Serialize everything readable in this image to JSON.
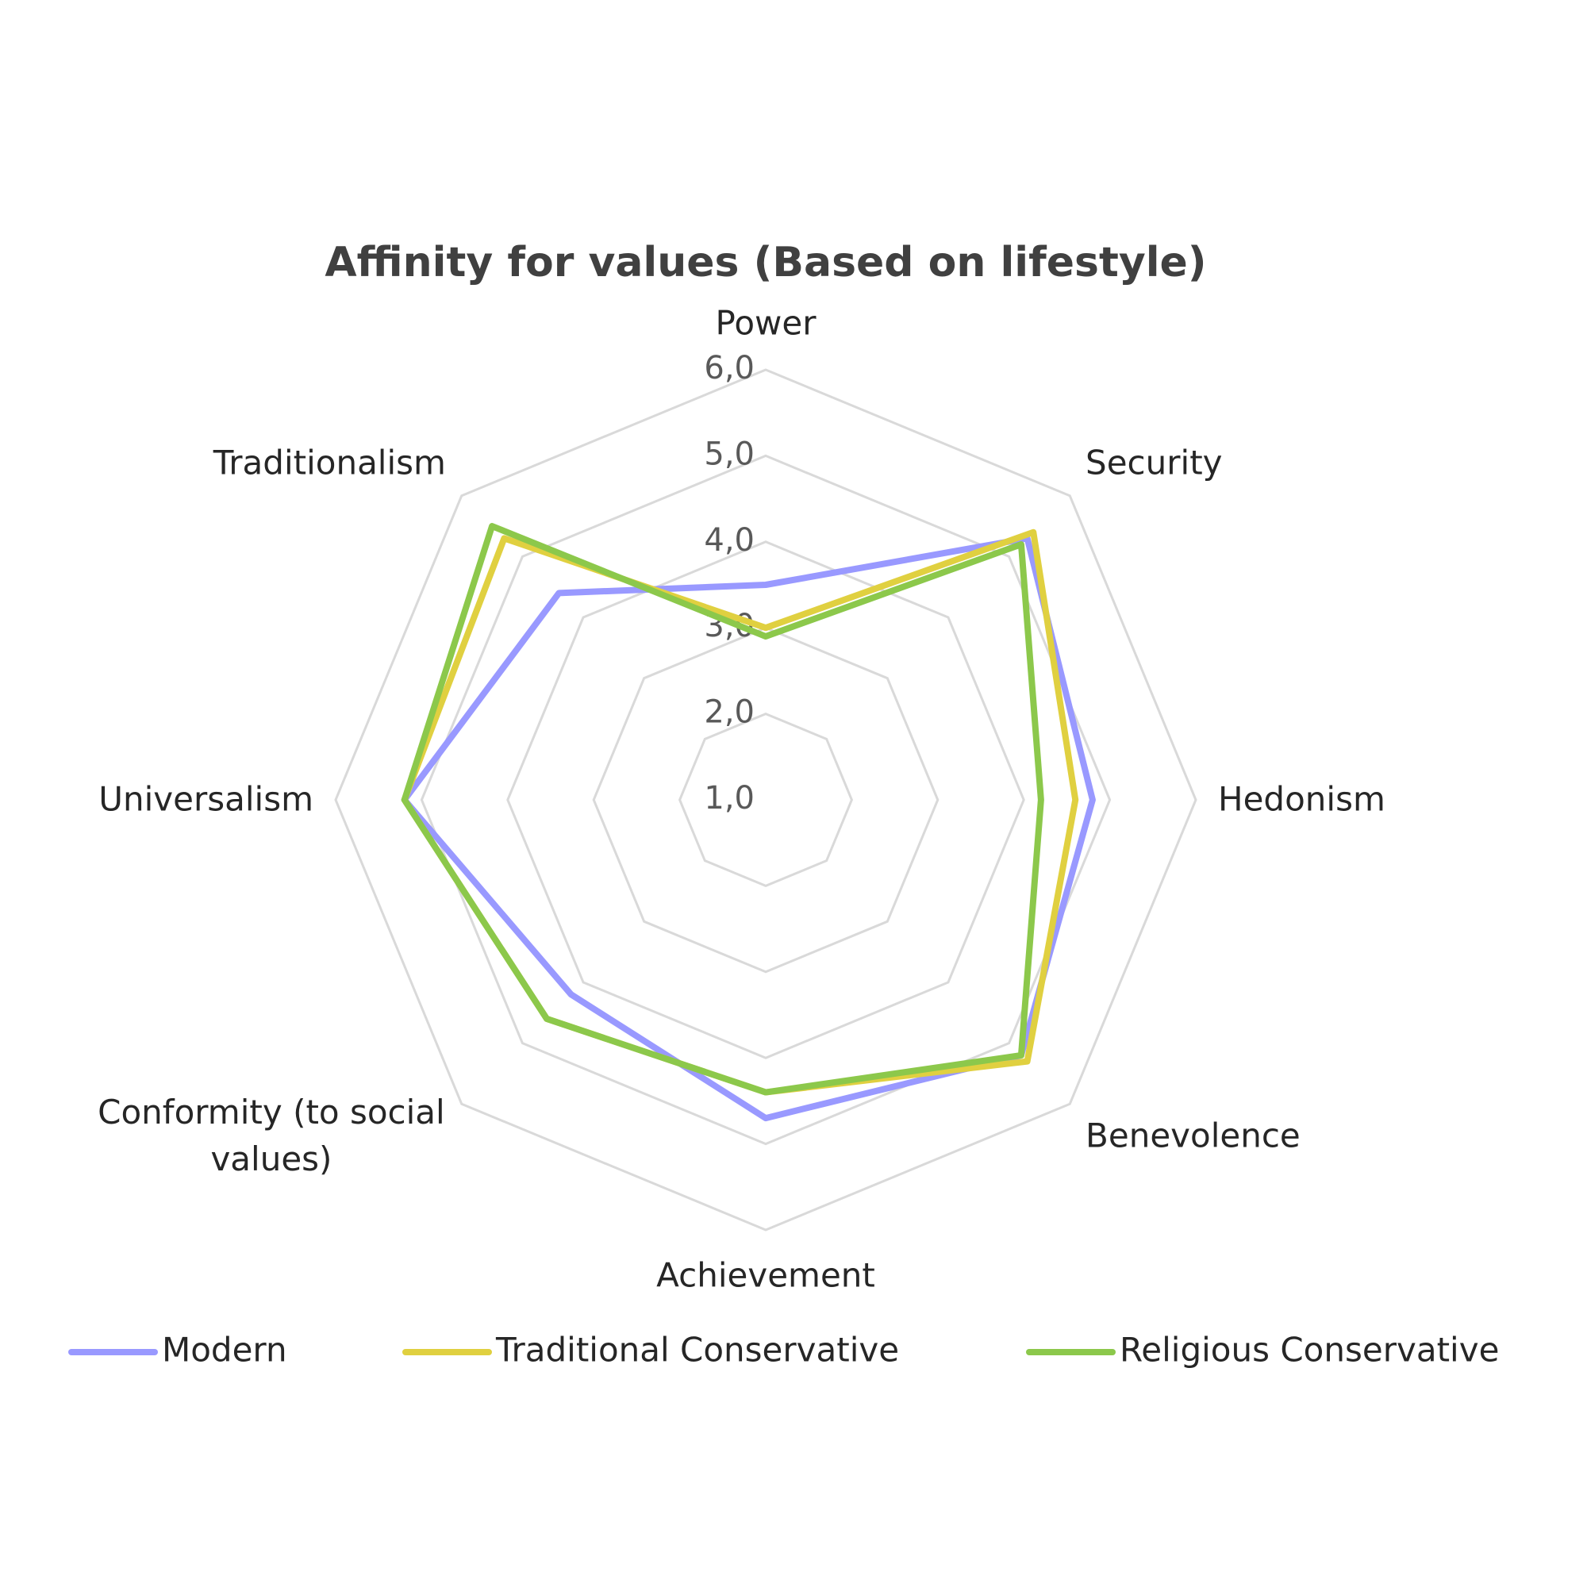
{
  "chart_data": {
    "type": "radar",
    "title": "Affinity for values (Based on lifestyle)",
    "categories": [
      "Power",
      "Security",
      "Hedonism",
      "Benevolence",
      "Achievement",
      "Conformity (to social values)",
      "Universalism",
      "Traditionalism"
    ],
    "series": [
      {
        "name": "Modern",
        "color": "#9999ff",
        "values": [
          3.5,
          5.3,
          4.8,
          5.2,
          4.7,
          4.2,
          5.2,
          4.4
        ]
      },
      {
        "name": "Traditional Conservative",
        "color": "#e0d040",
        "values": [
          3.0,
          5.4,
          4.6,
          5.3,
          4.4,
          4.6,
          5.2,
          5.3
        ]
      },
      {
        "name": "Religious Conservative",
        "color": "#8cc84b",
        "values": [
          2.9,
          5.2,
          4.2,
          5.2,
          4.4,
          4.6,
          5.2,
          5.5
        ]
      }
    ],
    "ylim": [
      1,
      6
    ],
    "yticks": [
      {
        "value": 1,
        "label": "1,0"
      },
      {
        "value": 2,
        "label": "2,0"
      },
      {
        "value": 3,
        "label": "3,0"
      },
      {
        "value": 4,
        "label": "4,0"
      },
      {
        "value": 5,
        "label": "5,0"
      },
      {
        "value": 6,
        "label": "6,0"
      }
    ],
    "grid": true
  }
}
